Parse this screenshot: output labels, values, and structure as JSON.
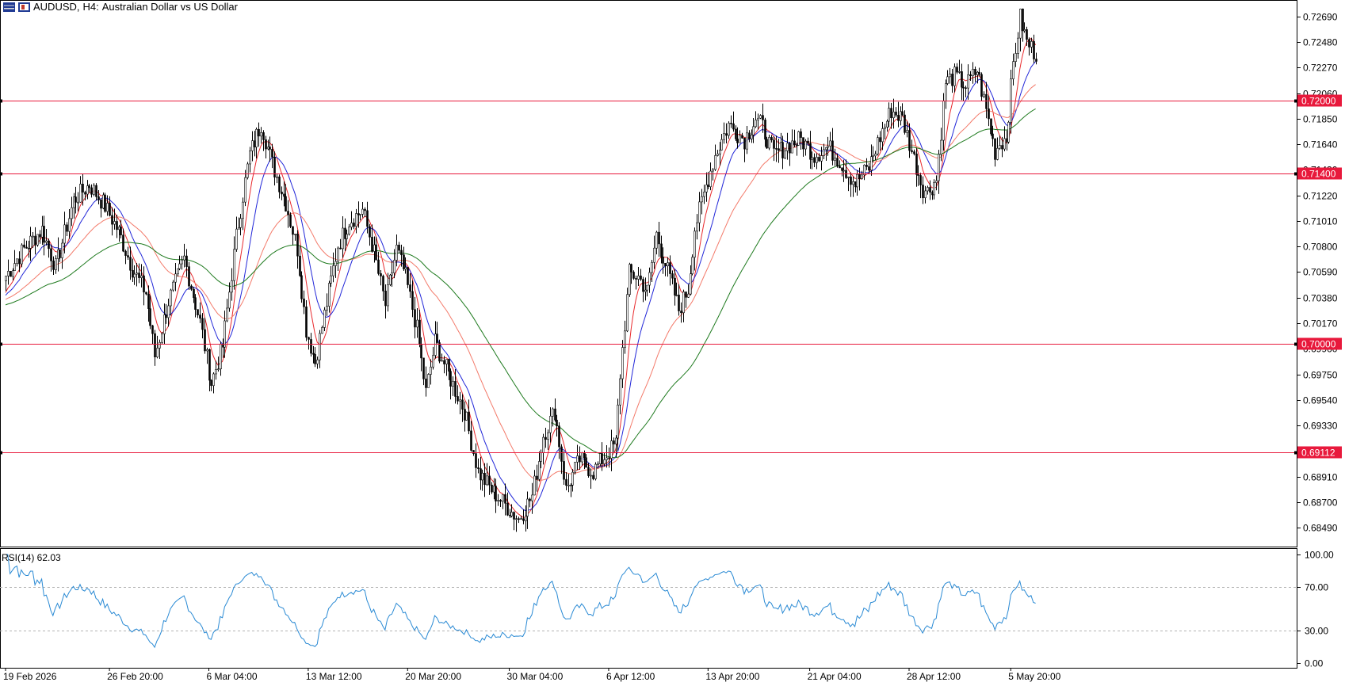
{
  "header": {
    "symbol": "AUDUSD",
    "timeframe": "H4:",
    "description": "Australian Dollar vs US Dollar",
    "icons": [
      "chart-list-icon",
      "one-click-trading-icon"
    ]
  },
  "chart_data": {
    "type": "candlestick",
    "price_axis": {
      "ticks": [
        0.7269,
        0.7248,
        0.7227,
        0.7206,
        0.7185,
        0.7164,
        0.7143,
        0.7122,
        0.7101,
        0.708,
        0.7059,
        0.7038,
        0.7017,
        0.6996,
        0.6975,
        0.6954,
        0.6933,
        0.6912,
        0.6891,
        0.687,
        0.6849
      ],
      "tick_labels": [
        "0.72690",
        "0.72480",
        "0.72270",
        "0.72060",
        "0.71850",
        "0.71640",
        "0.71430",
        "0.71220",
        "0.71010",
        "0.70800",
        "0.70590",
        "0.70380",
        "0.70170",
        "0.69960",
        "0.69750",
        "0.69540",
        "0.69330",
        "0.69120",
        "0.68910",
        "0.68700",
        "0.68490"
      ],
      "range": [
        0.68335,
        0.72825
      ]
    },
    "horizontal_levels": [
      {
        "value": 0.72,
        "label": "0.72000"
      },
      {
        "value": 0.714,
        "label": "0.71400"
      },
      {
        "value": 0.7,
        "label": "0.70000"
      },
      {
        "value": 0.69112,
        "label": "0.69112"
      }
    ],
    "time_axis": {
      "labels": [
        "19 Feb 2026",
        "26 Feb 20:00",
        "6 Mar 04:00",
        "13 Mar 12:00",
        "20 Mar 20:00",
        "30 Mar 04:00",
        "6 Apr 12:00",
        "13 Apr 20:00",
        "21 Apr 04:00",
        "28 Apr 12:00",
        "5 May 20:00"
      ],
      "bar_index": [
        0,
        46,
        90,
        134,
        178,
        223,
        267,
        311,
        356,
        400,
        445
      ]
    },
    "close_series": {
      "interval": "H4",
      "anchors": [
        [
          0,
          0.7056
        ],
        [
          8,
          0.7078
        ],
        [
          16,
          0.7094
        ],
        [
          22,
          0.7063
        ],
        [
          30,
          0.7118
        ],
        [
          37,
          0.7131
        ],
        [
          44,
          0.7113
        ],
        [
          50,
          0.7092
        ],
        [
          56,
          0.7062
        ],
        [
          62,
          0.7042
        ],
        [
          66,
          0.699
        ],
        [
          72,
          0.7035
        ],
        [
          79,
          0.707
        ],
        [
          86,
          0.7018
        ],
        [
          91,
          0.6968
        ],
        [
          96,
          0.6998
        ],
        [
          102,
          0.7088
        ],
        [
          108,
          0.7156
        ],
        [
          113,
          0.7181
        ],
        [
          118,
          0.7148
        ],
        [
          124,
          0.7116
        ],
        [
          129,
          0.7078
        ],
        [
          133,
          0.7012
        ],
        [
          137,
          0.6985
        ],
        [
          141,
          0.7024
        ],
        [
          147,
          0.7081
        ],
        [
          152,
          0.7101
        ],
        [
          158,
          0.711
        ],
        [
          163,
          0.7075
        ],
        [
          168,
          0.7032
        ],
        [
          173,
          0.7078
        ],
        [
          177,
          0.7055
        ],
        [
          182,
          0.7012
        ],
        [
          186,
          0.696
        ],
        [
          190,
          0.7002
        ],
        [
          196,
          0.6975
        ],
        [
          203,
          0.6945
        ],
        [
          209,
          0.6895
        ],
        [
          215,
          0.688
        ],
        [
          221,
          0.6868
        ],
        [
          227,
          0.6856
        ],
        [
          233,
          0.6875
        ],
        [
          238,
          0.6925
        ],
        [
          243,
          0.6945
        ],
        [
          248,
          0.688
        ],
        [
          254,
          0.6905
        ],
        [
          260,
          0.6895
        ],
        [
          264,
          0.6905
        ],
        [
          270,
          0.6918
        ],
        [
          272,
          0.6975
        ],
        [
          276,
          0.7058
        ],
        [
          280,
          0.7055
        ],
        [
          284,
          0.7043
        ],
        [
          288,
          0.709
        ],
        [
          293,
          0.706
        ],
        [
          298,
          0.7028
        ],
        [
          302,
          0.7045
        ],
        [
          305,
          0.7095
        ],
        [
          310,
          0.713
        ],
        [
          314,
          0.7155
        ],
        [
          320,
          0.718
        ],
        [
          327,
          0.7168
        ],
        [
          332,
          0.7185
        ],
        [
          335,
          0.7178
        ],
        [
          340,
          0.7155
        ],
        [
          346,
          0.7163
        ],
        [
          352,
          0.7168
        ],
        [
          358,
          0.7155
        ],
        [
          364,
          0.7162
        ],
        [
          370,
          0.7148
        ],
        [
          376,
          0.7132
        ],
        [
          382,
          0.7145
        ],
        [
          388,
          0.7175
        ],
        [
          392,
          0.7192
        ],
        [
          397,
          0.7185
        ],
        [
          402,
          0.7152
        ],
        [
          406,
          0.7128
        ],
        [
          408,
          0.7125
        ],
        [
          412,
          0.7135
        ],
        [
          416,
          0.7215
        ],
        [
          420,
          0.722
        ],
        [
          425,
          0.7212
        ],
        [
          430,
          0.7225
        ],
        [
          434,
          0.7192
        ],
        [
          438,
          0.7158
        ],
        [
          440,
          0.7165
        ],
        [
          443,
          0.717
        ],
        [
          446,
          0.723
        ],
        [
          449,
          0.7268
        ],
        [
          452,
          0.7248
        ],
        [
          456,
          0.7238
        ]
      ]
    },
    "moving_averages": [
      {
        "period": 10,
        "color": "#e8292c"
      },
      {
        "period": 20,
        "color": "#2126d8"
      },
      {
        "period": 50,
        "color": "#f37a6a"
      },
      {
        "period": 100,
        "color": "#1e7a1e"
      }
    ],
    "colors": {
      "candle_up": "#ffffff",
      "candle_down": "#000000",
      "candle_outline": "#000000",
      "level_line": "#e8193c",
      "level_tag": "#e8193c",
      "rsi_line": "#2a8ad4",
      "rsi_level": "#b3b3b3"
    },
    "indicator": {
      "label": "RSI(14) 62.03",
      "name": "RSI",
      "period": 14,
      "last_value": 62.03,
      "axis_ticks": [
        100,
        70,
        30,
        0
      ],
      "axis_labels": [
        "100.00",
        "70.00",
        "30.00",
        "0.00"
      ],
      "levels": [
        70,
        30
      ]
    }
  }
}
